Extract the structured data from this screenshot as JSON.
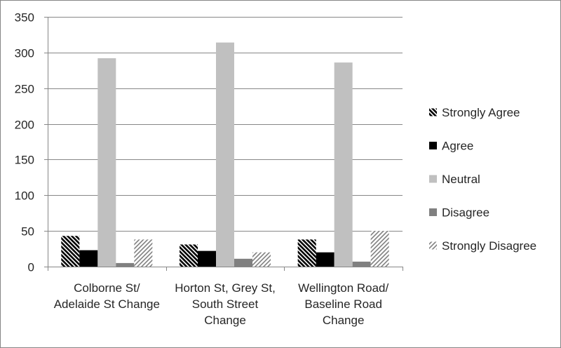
{
  "chart_data": {
    "type": "bar",
    "title": "",
    "xlabel": "",
    "ylabel": "",
    "ylim": [
      0,
      350
    ],
    "yticks": [
      0,
      50,
      100,
      150,
      200,
      250,
      300,
      350
    ],
    "grid": true,
    "legend_position": "right",
    "categories": [
      [
        "Colborne St/",
        "Adelaide St Change"
      ],
      [
        "Horton St, Grey St,",
        "South Street",
        "Change"
      ],
      [
        "Wellington Road/",
        "Baseline Road",
        "Change"
      ]
    ],
    "series": [
      {
        "name": "Strongly Agree",
        "pattern": "diag-dense-back",
        "values": [
          43,
          31,
          38
        ]
      },
      {
        "name": "Agree",
        "pattern": "solid-black",
        "values": [
          23,
          22,
          20
        ]
      },
      {
        "name": "Neutral",
        "pattern": "solid-light-gray",
        "values": [
          292,
          314,
          286
        ]
      },
      {
        "name": "Disagree",
        "pattern": "solid-dark-gray",
        "values": [
          5,
          11,
          7
        ]
      },
      {
        "name": "Strongly Disagree",
        "pattern": "diag-light-forward",
        "values": [
          38,
          20,
          50
        ]
      }
    ],
    "colors": {
      "grid": "#878787",
      "axis": "#878787",
      "neutral": "#c0c0c0",
      "disagree": "#808080",
      "agree": "#000000"
    }
  }
}
